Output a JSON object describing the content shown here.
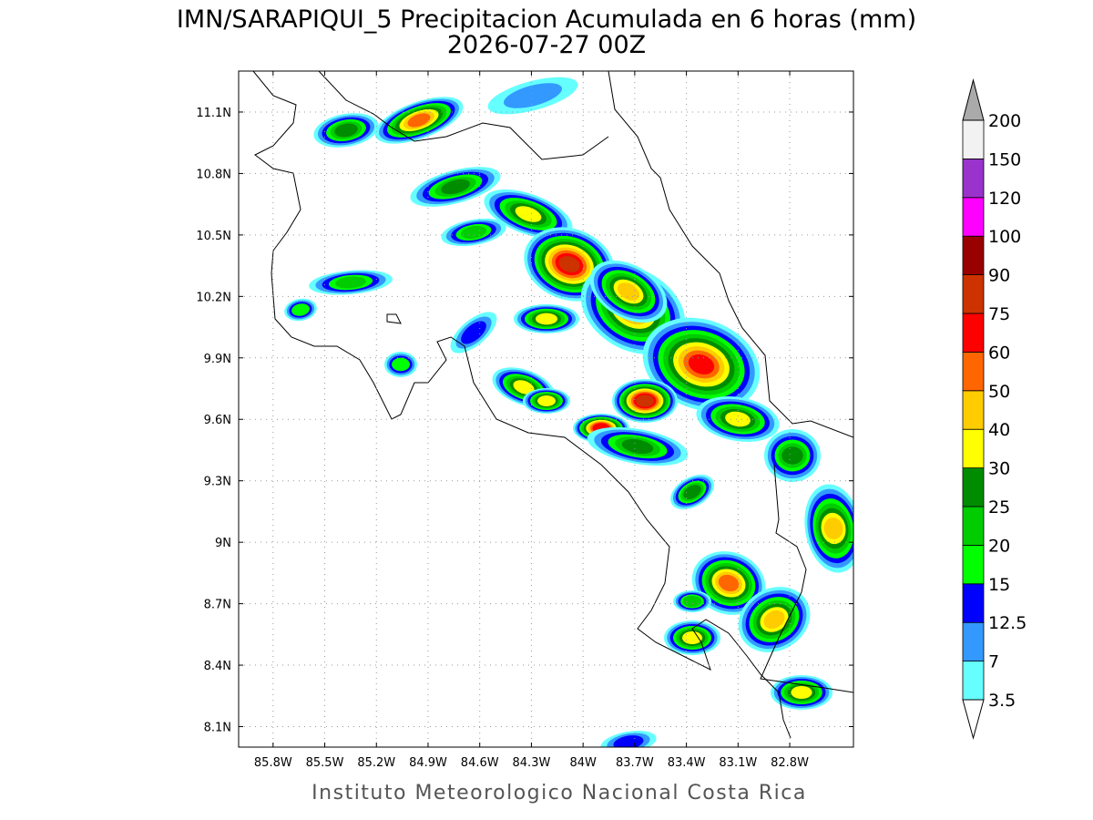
{
  "title": "IMN/SARAPIQUI_5 Precipitacion Acumulada en 6 horas (mm)",
  "subtitle": "2026-07-27 00Z",
  "map": {
    "lonlim": [
      -86.0,
      -82.43
    ],
    "latlim": [
      8.0,
      11.3
    ],
    "grid": true,
    "lat_ticks": [
      {
        "value": 11.1,
        "label": "11.1N"
      },
      {
        "value": 10.8,
        "label": "10.8N"
      },
      {
        "value": 10.5,
        "label": "10.5N"
      },
      {
        "value": 10.2,
        "label": "10.2N"
      },
      {
        "value": 9.9,
        "label": "9.9N"
      },
      {
        "value": 9.6,
        "label": "9.6N"
      },
      {
        "value": 9.3,
        "label": "9.3N"
      },
      {
        "value": 9,
        "label": "9N"
      },
      {
        "value": 8.7,
        "label": "8.7N"
      },
      {
        "value": 8.4,
        "label": "8.4N"
      },
      {
        "value": 8.1,
        "label": "8.1N"
      }
    ],
    "lon_ticks": [
      {
        "value": -85.8,
        "label": "85.8W"
      },
      {
        "value": -85.5,
        "label": "85.5W"
      },
      {
        "value": -85.2,
        "label": "85.2W"
      },
      {
        "value": -84.9,
        "label": "84.9W"
      },
      {
        "value": -84.6,
        "label": "84.6W"
      },
      {
        "value": -84.3,
        "label": "84.3W"
      },
      {
        "value": -84,
        "label": "84W"
      },
      {
        "value": -83.7,
        "label": "83.7W"
      },
      {
        "value": -83.4,
        "label": "83.4W"
      },
      {
        "value": -83.1,
        "label": "83.1W"
      },
      {
        "value": -82.8,
        "label": "82.8W"
      }
    ]
  },
  "colorbar": {
    "levels": [
      3.5,
      7,
      12.5,
      15,
      20,
      25,
      30,
      40,
      50,
      60,
      75,
      90,
      100,
      120,
      150,
      200
    ],
    "colors": [
      "#66ffff",
      "#3399ff",
      "#0000ff",
      "#00ff00",
      "#00cc00",
      "#008c00",
      "#ffff00",
      "#ffcc00",
      "#ff6600",
      "#ff0000",
      "#cc3300",
      "#990000",
      "#ff00ff",
      "#9933cc",
      "#f2f2f2"
    ],
    "under_color": "#ffffff",
    "over_color": "#aaaaaa"
  },
  "footer": "Instituto Meteorologico Nacional Costa Rica"
}
